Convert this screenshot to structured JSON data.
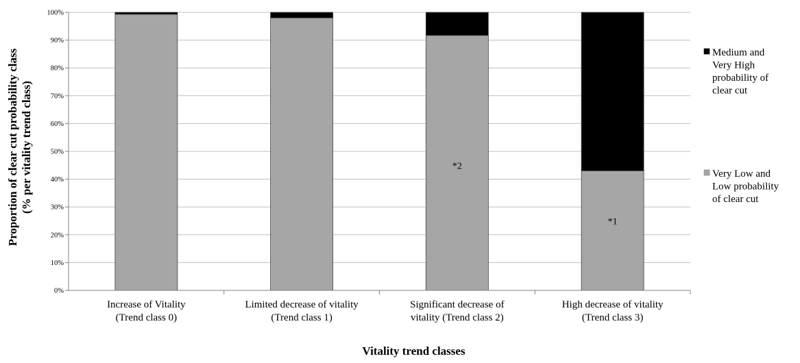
{
  "chart_data": {
    "type": "bar",
    "stacked": true,
    "percent_stacked": true,
    "categories": [
      [
        "Increase of Vitality",
        "(Trend class 0)"
      ],
      [
        "Limited decrease of vitality",
        "(Trend class 1)"
      ],
      [
        "Significant decrease of",
        "vitality (Trend class 2)"
      ],
      [
        "High decrease of vitality",
        "(Trend class 3)"
      ]
    ],
    "series": [
      {
        "name": [
          "Very Low and",
          "Low probability",
          "of clear cut"
        ],
        "color": "#a6a6a6",
        "values": [
          99.3,
          98.0,
          91.7,
          43.0
        ]
      },
      {
        "name": [
          "Medium and",
          "Very High",
          "probability of",
          "clear cut"
        ],
        "color": "#000000",
        "values": [
          0.7,
          2.0,
          8.3,
          57.0
        ]
      }
    ],
    "annotations": [
      {
        "category_index": 2,
        "text": "*2",
        "y": 45
      },
      {
        "category_index": 3,
        "text": "*1",
        "y": 25
      }
    ],
    "yticks": [
      "0%",
      "10%",
      "20%",
      "30%",
      "40%",
      "50%",
      "60%",
      "70%",
      "80%",
      "90%",
      "100%"
    ],
    "ylim": [
      0,
      100
    ],
    "xlabel": "Vitality trend classes",
    "ylabel": [
      "Proportion of clear cut probability class",
      "(% per vitality trend class)"
    ],
    "grid": true,
    "legend_position": "right"
  }
}
